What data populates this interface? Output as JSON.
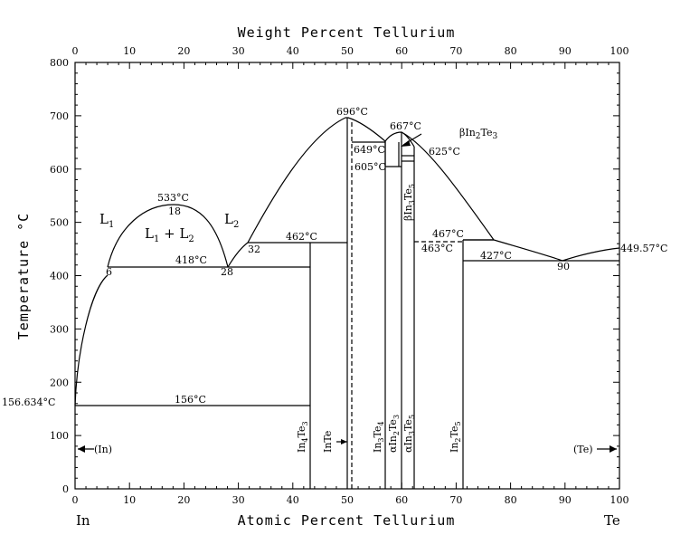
{
  "top_axis_title": "Weight Percent Tellurium",
  "bottom_axis_title": "Atomic Percent Tellurium",
  "y_axis_title": "Temperature °C",
  "element_left": "In",
  "element_right": "Te",
  "x_ticks": [
    "0",
    "10",
    "20",
    "30",
    "40",
    "50",
    "60",
    "70",
    "80",
    "90",
    "100"
  ],
  "top_ticks": [
    "0",
    "10",
    "20",
    "30",
    "40",
    "50",
    "60",
    "70",
    "80",
    "90",
    "100"
  ],
  "y_ticks": [
    "0",
    "100",
    "200",
    "300",
    "400",
    "500",
    "600",
    "700",
    "800"
  ],
  "phase_labels": {
    "l1": "L1",
    "l2": "L2",
    "l1l2": "L1 + L2",
    "in_side": "(In)",
    "te_side": "(Te)",
    "in4te3": "In4Te3",
    "inte": "InTe",
    "in3te4": "In3Te4",
    "a_in2te3": "αIn2Te3",
    "a_in3te5": "αIn3Te5",
    "in2te5": "In2Te5",
    "b_in3te5": "βIn3Te5",
    "b_in2te3": "βIn2Te3"
  },
  "temp_labels": {
    "t533": "533°C",
    "t18": "18",
    "t6": "6",
    "t28": "28",
    "t418": "418°C",
    "t32": "32",
    "t462": "462°C",
    "t696": "696°C",
    "t649": "649°C",
    "t605": "605°C",
    "t667": "667°C",
    "t625": "625°C",
    "t467": "467°C",
    "t463": "463°C",
    "t427": "427°C",
    "t90": "90",
    "t449": "449.57°C",
    "t156": "156°C",
    "t156634": "156.634°C"
  },
  "chart_data": {
    "type": "phase-diagram",
    "xlabel": "Atomic Percent Tellurium",
    "x2label": "Weight Percent Tellurium",
    "ylabel": "Temperature °C",
    "xlim": [
      0,
      100
    ],
    "ylim": [
      0,
      800
    ],
    "invariants": [
      {
        "T": 156,
        "x_range": [
          0,
          43
        ]
      },
      {
        "T": 418,
        "x_range": [
          6,
          43
        ],
        "points": [
          6,
          28
        ]
      },
      {
        "T": 462,
        "x_range": [
          32,
          50
        ]
      },
      {
        "T": 467,
        "x_range": [
          63,
          77
        ]
      },
      {
        "T": 463,
        "x_range": [
          63,
          71
        ]
      },
      {
        "T": 427,
        "x_range": [
          71,
          100
        ],
        "points": [
          90
        ]
      },
      {
        "T": 649,
        "x_range": [
          50.5,
          57
        ]
      },
      {
        "T": 605,
        "x_range": [
          57,
          60
        ]
      },
      {
        "T": 625,
        "x_range": [
          60,
          63
        ]
      }
    ],
    "maxima": [
      {
        "label": "533°C",
        "x": 18,
        "T": 533
      },
      {
        "label": "696°C",
        "x": 50.5,
        "T": 696
      },
      {
        "label": "667°C",
        "x": 60,
        "T": 667
      }
    ],
    "melting_points": [
      {
        "element": "In",
        "T": 156.634
      },
      {
        "element": "Te",
        "T": 449.57
      }
    ],
    "compounds": [
      {
        "name": "In4Te3",
        "x": 43
      },
      {
        "name": "InTe",
        "x": 50
      },
      {
        "name": "In3Te4",
        "x": 57
      },
      {
        "name": "αIn2Te3",
        "x": 60
      },
      {
        "name": "αIn3Te5",
        "x": 62.5
      },
      {
        "name": "In2Te5",
        "x": 71.4
      }
    ]
  }
}
